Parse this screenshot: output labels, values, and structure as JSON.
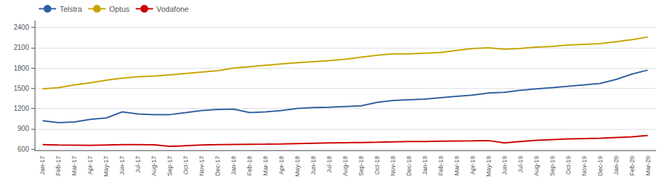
{
  "chart_data": {
    "type": "line",
    "categories": [
      "Jan-17",
      "Feb-17",
      "Mar-17",
      "Apr-17",
      "May-17",
      "Jun-17",
      "Jul-17",
      "Aug-17",
      "Sep-17",
      "Oct-17",
      "Nov-17",
      "Dec-17",
      "Jan-18",
      "Feb-18",
      "Mar-18",
      "Apr-18",
      "May-18",
      "Jun-18",
      "Jul-18",
      "Aug-18",
      "Sep-18",
      "Oct-18",
      "Nov-18",
      "Dec-18",
      "Jan-19",
      "Feb-19",
      "Mar-19",
      "Apr-19",
      "May-19",
      "Jun-19",
      "Jul-19",
      "Aug-19",
      "Sep-19",
      "Oct-19",
      "Nov-19",
      "Dec-19",
      "Jan-20",
      "Feb-20",
      "Mar-20"
    ],
    "series": [
      {
        "name": "Telstra",
        "color": "#2E5FA3",
        "values": [
          1020,
          990,
          1000,
          1040,
          1060,
          1150,
          1120,
          1110,
          1110,
          1140,
          1170,
          1185,
          1190,
          1140,
          1150,
          1170,
          1200,
          1215,
          1220,
          1230,
          1240,
          1290,
          1320,
          1330,
          1340,
          1360,
          1380,
          1400,
          1430,
          1440,
          1470,
          1490,
          1510,
          1530,
          1550,
          1570,
          1630,
          1710,
          1770
        ]
      },
      {
        "name": "Optus",
        "color": "#C8A400",
        "values": [
          1490,
          1510,
          1550,
          1580,
          1620,
          1650,
          1670,
          1680,
          1700,
          1720,
          1740,
          1760,
          1800,
          1820,
          1840,
          1860,
          1880,
          1895,
          1910,
          1930,
          1960,
          1990,
          2010,
          2010,
          2020,
          2030,
          2060,
          2090,
          2100,
          2080,
          2090,
          2110,
          2120,
          2140,
          2150,
          2160,
          2190,
          2220,
          2260
        ]
      },
      {
        "name": "Vodafone",
        "color": "#CC0000",
        "values": [
          665,
          660,
          658,
          655,
          660,
          665,
          665,
          663,
          638,
          650,
          660,
          665,
          668,
          670,
          672,
          675,
          680,
          685,
          690,
          693,
          696,
          700,
          705,
          710,
          712,
          715,
          718,
          720,
          725,
          690,
          710,
          728,
          740,
          750,
          755,
          760,
          770,
          780,
          800
        ]
      }
    ],
    "ylim": [
      580,
      2500
    ],
    "yticks": [
      600,
      900,
      1200,
      1500,
      1800,
      2100,
      2400
    ],
    "grid": true,
    "legend": "upper left"
  }
}
